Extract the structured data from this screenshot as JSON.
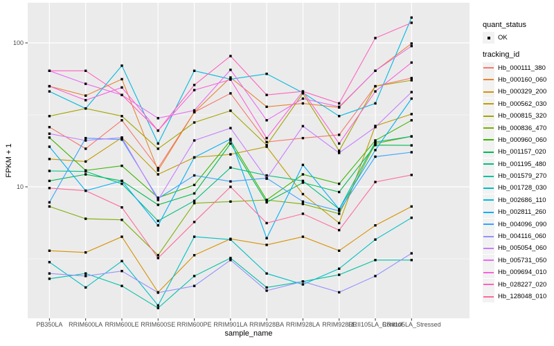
{
  "legend": {
    "quant_status_title": "quant_status",
    "quant_status_value": "OK",
    "tracking_id_title": "tracking_id"
  },
  "chart_data": {
    "type": "line",
    "xlabel": "sample_name",
    "ylabel": "FPKM + 1",
    "y_scale": "log10",
    "ylim": [
      1.22,
      190
    ],
    "y_ticks": [
      100,
      10
    ],
    "y_tick_labels": [
      "100",
      "10"
    ],
    "y_minor_gridlines": [
      3.1623,
      31.6228
    ],
    "grid": "on",
    "legend_position": "right",
    "panel_background": "#EBEBEB",
    "marker": "small-black-square",
    "categories": [
      "PB350LA",
      "RRIM600LA",
      "RRIM600LE",
      "RRIM600SE",
      "RRIM600PE",
      "RRIM901LA",
      "RRIM928BA",
      "RRIM928LA",
      "RRIM928LE",
      "RRII105LA_Control",
      "RRII105LA_Stressed"
    ],
    "series": [
      {
        "name": "Hb_000111_380",
        "color": "#F8766D",
        "values": [
          26,
          18.4,
          29,
          13.5,
          33,
          44.6,
          20.5,
          21.8,
          23,
          50,
          57
        ]
      },
      {
        "name": "Hb_000160_060",
        "color": "#EA8331",
        "values": [
          50,
          43,
          56,
          13,
          33,
          57.5,
          36,
          38,
          35.6,
          64,
          99
        ]
      },
      {
        "name": "Hb_000329_200",
        "color": "#D89000",
        "values": [
          3.6,
          3.5,
          4.5,
          1.85,
          3.35,
          4.35,
          3.95,
          4.5,
          3.6,
          5.4,
          7.3
        ]
      },
      {
        "name": "Hb_000562_030",
        "color": "#C09B00",
        "values": [
          15.6,
          15,
          22,
          12.2,
          16,
          16.8,
          19,
          8.9,
          5.6,
          26.5,
          32
        ]
      },
      {
        "name": "Hb_000815_320",
        "color": "#A3A500",
        "values": [
          31,
          35,
          31,
          18.4,
          28,
          33.8,
          19.5,
          44.6,
          17.8,
          50,
          55
        ]
      },
      {
        "name": "Hb_000836_470",
        "color": "#7CAE00",
        "values": [
          7.3,
          6.0,
          5.9,
          3.35,
          7.7,
          7.9,
          8.1,
          7.6,
          6.5,
          20,
          22.4
        ]
      },
      {
        "name": "Hb_000960_060",
        "color": "#39B600",
        "values": [
          22,
          13,
          14,
          8.4,
          10.3,
          21,
          8.1,
          12.2,
          10.5,
          21,
          29
        ]
      },
      {
        "name": "Hb_001157_020",
        "color": "#00BB4E",
        "values": [
          11,
          12.2,
          11,
          7.5,
          9,
          20,
          7.8,
          10.7,
          9.2,
          19.5,
          19.4
        ]
      },
      {
        "name": "Hb_001195_480",
        "color": "#00BF7D",
        "values": [
          12.9,
          12.8,
          10.5,
          5.8,
          8,
          13.6,
          12,
          11,
          7,
          20.5,
          22.4
        ]
      },
      {
        "name": "Hb_001579_270",
        "color": "#00C1A3",
        "values": [
          2.3,
          2.5,
          2.05,
          1.44,
          2.4,
          3.2,
          2.0,
          2.2,
          2.45,
          3.1,
          3.1
        ]
      },
      {
        "name": "Hb_001728_030",
        "color": "#00BFC4",
        "values": [
          3.0,
          2.0,
          3.05,
          1.5,
          4.5,
          4.3,
          2.5,
          2.1,
          2.7,
          4.3,
          6.1
        ]
      },
      {
        "name": "Hb_002686_110",
        "color": "#00BAE0",
        "values": [
          46,
          35,
          69.5,
          20,
          64,
          56,
          61,
          45,
          31,
          38,
          150
        ]
      },
      {
        "name": "Hb_002811_260",
        "color": "#00B0F6",
        "values": [
          19,
          9.4,
          11,
          5.4,
          16,
          21.5,
          4.4,
          14.2,
          7,
          18,
          41
        ]
      },
      {
        "name": "Hb_004096_090",
        "color": "#35A2FF",
        "values": [
          7.8,
          21.8,
          21.3,
          8.3,
          12,
          10.9,
          11.5,
          7.9,
          6.8,
          16.2,
          17.4
        ]
      },
      {
        "name": "Hb_004116_060",
        "color": "#9590FF",
        "values": [
          2.5,
          2.4,
          2.6,
          1.84,
          2.05,
          3.1,
          1.9,
          2.2,
          1.85,
          2.4,
          3.45
        ]
      },
      {
        "name": "Hb_005054_060",
        "color": "#C77CFF",
        "values": [
          23.4,
          21,
          22,
          8.1,
          21,
          25.6,
          11.4,
          26.4,
          17.2,
          26,
          45.5
        ]
      },
      {
        "name": "Hb_005731_050",
        "color": "#E76BF3",
        "values": [
          64,
          52,
          43.5,
          30,
          34,
          65,
          29,
          41,
          36,
          64,
          95
        ]
      },
      {
        "name": "Hb_009694_010",
        "color": "#FA62DB",
        "values": [
          50,
          40,
          49,
          24.6,
          47,
          55.6,
          21.8,
          46,
          20,
          46,
          73
        ]
      },
      {
        "name": "Hb_028227_020",
        "color": "#FF62BC",
        "values": [
          64,
          64,
          43.5,
          24.6,
          51,
          81,
          43.5,
          46,
          38,
          108,
          138
        ]
      },
      {
        "name": "Hb_128048_010",
        "color": "#FF6A98",
        "values": [
          9.8,
          9.4,
          7.2,
          3.2,
          5.7,
          10,
          5.6,
          6.5,
          5,
          10.8,
          12.1
        ]
      }
    ]
  }
}
